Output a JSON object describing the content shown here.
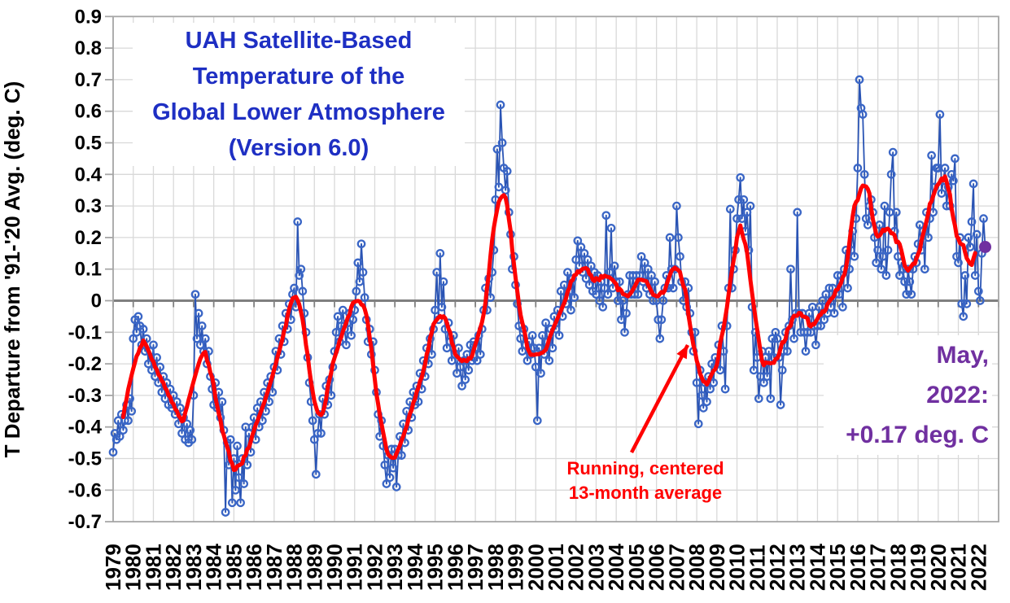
{
  "figure": {
    "title_lines": [
      "UAH Satellite-Based",
      "Temperature of the",
      "Global Lower Atmosphere",
      "(Version 6.0)"
    ],
    "title_color": "#1E2FC3",
    "y_axis_title": "T Departure from '91-'20 Avg. (deg. C)",
    "latest_label_lines": [
      "May,",
      "2022:",
      "+0.17 deg. C"
    ],
    "latest_color": "#7030A0",
    "smoother_label_lines": [
      "Running, centered",
      "13-month average"
    ],
    "smoother_color": "#FF0000",
    "colors": {
      "monthly_line": "#2A54B4",
      "monthly_marker": "#3A66C6",
      "smoother": "#FF0000",
      "latest_point": "#7030A0",
      "grid": "#D9D9D9",
      "zero_line": "#808080",
      "border": "#A6A6A6",
      "tick_label": "#000000"
    }
  },
  "chart_data": {
    "type": "line",
    "title": "UAH Satellite-Based Temperature of the Global Lower Atmosphere (Version 6.0)",
    "ylabel": "T Departure from '91-'20 Avg. (deg. C)",
    "ylim": [
      -0.7,
      0.9
    ],
    "y_ticks": [
      "0.9",
      "0.8",
      "0.7",
      "0.6",
      "0.5",
      "0.4",
      "0.3",
      "0.2",
      "0.1",
      "0",
      "-0.1",
      "-0.2",
      "-0.3",
      "-0.4",
      "-0.5",
      "-0.6",
      "-0.7"
    ],
    "grid": true,
    "x_start": "1979-01",
    "x_end": "2022-05",
    "x_axis_extends_to": "2023-01",
    "x_tick_years": [
      1979,
      1980,
      1981,
      1982,
      1983,
      1984,
      1985,
      1986,
      1987,
      1988,
      1989,
      1990,
      1991,
      1992,
      1993,
      1994,
      1995,
      1996,
      1997,
      1998,
      1999,
      2000,
      2001,
      2002,
      2003,
      2004,
      2005,
      2006,
      2007,
      2008,
      2009,
      2010,
      2011,
      2012,
      2013,
      2014,
      2015,
      2016,
      2017,
      2018,
      2019,
      2020,
      2021,
      2022
    ],
    "series": [
      {
        "name": "Monthly global lower-atmosphere temperature anomaly (deg. C, '91-'20 base)",
        "style": "line+open-circle-markers",
        "values": [
          -0.48,
          -0.42,
          -0.44,
          -0.38,
          -0.43,
          -0.36,
          -0.41,
          -0.38,
          -0.33,
          -0.38,
          -0.31,
          -0.35,
          -0.12,
          -0.06,
          -0.1,
          -0.05,
          -0.08,
          -0.14,
          -0.09,
          -0.16,
          -0.12,
          -0.2,
          -0.16,
          -0.22,
          -0.14,
          -0.24,
          -0.18,
          -0.26,
          -0.21,
          -0.29,
          -0.24,
          -0.31,
          -0.26,
          -0.33,
          -0.28,
          -0.34,
          -0.3,
          -0.36,
          -0.32,
          -0.39,
          -0.34,
          -0.42,
          -0.37,
          -0.44,
          -0.39,
          -0.45,
          -0.41,
          -0.44,
          -0.3,
          0.02,
          -0.12,
          -0.04,
          -0.14,
          -0.08,
          -0.16,
          -0.12,
          -0.2,
          -0.16,
          -0.24,
          -0.28,
          -0.33,
          -0.26,
          -0.34,
          -0.29,
          -0.37,
          -0.32,
          -0.41,
          -0.67,
          -0.45,
          -0.52,
          -0.44,
          -0.64,
          -0.5,
          -0.6,
          -0.46,
          -0.56,
          -0.64,
          -0.5,
          -0.58,
          -0.4,
          -0.52,
          -0.42,
          -0.48,
          -0.4,
          -0.37,
          -0.44,
          -0.34,
          -0.4,
          -0.32,
          -0.38,
          -0.29,
          -0.35,
          -0.26,
          -0.32,
          -0.24,
          -0.29,
          -0.21,
          -0.16,
          -0.22,
          -0.12,
          -0.17,
          -0.08,
          -0.13,
          -0.04,
          -0.09,
          -0.01,
          -0.06,
          0.02,
          0.04,
          -0.02,
          0.25,
          0.08,
          0.1,
          0.03,
          -0.04,
          -0.1,
          -0.18,
          -0.26,
          -0.32,
          -0.38,
          -0.44,
          -0.55,
          -0.42,
          -0.36,
          -0.42,
          -0.31,
          -0.36,
          -0.27,
          -0.33,
          -0.25,
          -0.3,
          -0.21,
          -0.16,
          -0.1,
          -0.05,
          -0.13,
          -0.08,
          -0.03,
          -0.09,
          -0.14,
          -0.07,
          -0.04,
          -0.11,
          -0.06,
          -0.03,
          0.03,
          0.12,
          0.06,
          0.18,
          0.09,
          0.01,
          -0.06,
          -0.13,
          -0.09,
          -0.17,
          -0.13,
          -0.22,
          -0.29,
          -0.36,
          -0.43,
          -0.38,
          -0.46,
          -0.52,
          -0.58,
          -0.49,
          -0.56,
          -0.47,
          -0.53,
          -0.47,
          -0.59,
          -0.49,
          -0.43,
          -0.49,
          -0.39,
          -0.45,
          -0.35,
          -0.41,
          -0.32,
          -0.37,
          -0.29,
          -0.33,
          -0.27,
          -0.32,
          -0.23,
          -0.28,
          -0.19,
          -0.24,
          -0.15,
          -0.2,
          -0.12,
          -0.17,
          -0.09,
          -0.03,
          0.09,
          -0.06,
          0.15,
          -0.02,
          0.06,
          -0.09,
          -0.15,
          -0.07,
          -0.13,
          -0.19,
          -0.11,
          -0.17,
          -0.23,
          -0.15,
          -0.21,
          -0.27,
          -0.19,
          -0.25,
          -0.17,
          -0.22,
          -0.14,
          -0.19,
          -0.13,
          -0.15,
          -0.19,
          -0.11,
          -0.17,
          -0.09,
          -0.03,
          0.04,
          -0.03,
          0.07,
          0.01,
          0.09,
          0.16,
          0.32,
          0.48,
          0.36,
          0.62,
          0.5,
          0.42,
          0.35,
          0.41,
          0.28,
          0.21,
          0.1,
          0.14,
          0.05,
          -0.01,
          -0.08,
          -0.12,
          -0.16,
          -0.09,
          -0.14,
          -0.19,
          -0.13,
          -0.17,
          -0.11,
          -0.15,
          -0.21,
          -0.38,
          -0.15,
          -0.23,
          -0.11,
          -0.17,
          -0.07,
          -0.13,
          -0.19,
          -0.09,
          -0.15,
          -0.05,
          -0.09,
          -0.03,
          -0.11,
          0.03,
          -0.05,
          0.05,
          -0.01,
          0.09,
          0.03,
          -0.03,
          0.07,
          0.01,
          0.13,
          0.19,
          0.11,
          0.17,
          0.09,
          0.15,
          0.07,
          0.13,
          0.05,
          0.11,
          0.03,
          0.09,
          0.02,
          0.08,
          0.0,
          0.06,
          -0.02,
          0.04,
          0.27,
          0.02,
          0.09,
          0.23,
          0.04,
          0.11,
          0.06,
          0.0,
          0.06,
          -0.06,
          0.0,
          -0.1,
          -0.04,
          0.02,
          0.08,
          0.02,
          0.08,
          0.02,
          0.08,
          0.02,
          0.08,
          0.14,
          0.06,
          0.12,
          0.04,
          0.1,
          0.02,
          0.08,
          0.0,
          0.06,
          0.0,
          -0.06,
          -0.12,
          -0.06,
          0.0,
          0.04,
          0.08,
          0.04,
          0.2,
          0.1,
          0.04,
          0.1,
          0.3,
          0.2,
          0.14,
          0.06,
          0.0,
          0.06,
          -0.02,
          0.04,
          -0.04,
          -0.1,
          -0.16,
          -0.1,
          -0.26,
          -0.39,
          -0.22,
          -0.3,
          -0.34,
          -0.26,
          -0.32,
          -0.24,
          -0.28,
          -0.2,
          -0.26,
          -0.18,
          -0.2,
          -0.14,
          -0.22,
          -0.08,
          -0.16,
          -0.28,
          -0.08,
          0.04,
          0.29,
          0.04,
          0.1,
          0.16,
          0.26,
          0.32,
          0.39,
          0.26,
          0.32,
          0.22,
          0.28,
          0.16,
          0.3,
          -0.02,
          -0.22,
          -0.1,
          -0.18,
          -0.31,
          -0.24,
          -0.16,
          -0.26,
          -0.18,
          -0.24,
          -0.16,
          -0.31,
          -0.12,
          -0.18,
          -0.1,
          -0.12,
          -0.18,
          -0.33,
          -0.22,
          -0.16,
          -0.1,
          -0.16,
          -0.08,
          0.1,
          -0.06,
          -0.12,
          -0.04,
          0.28,
          -0.04,
          -0.1,
          -0.04,
          -0.1,
          -0.16,
          -0.1,
          -0.04,
          -0.1,
          -0.02,
          -0.08,
          -0.14,
          -0.08,
          -0.02,
          -0.08,
          0.0,
          -0.06,
          0.02,
          -0.04,
          0.04,
          -0.02,
          0.04,
          -0.04,
          0.02,
          0.08,
          0.02,
          0.08,
          -0.02,
          0.1,
          0.16,
          0.04,
          0.1,
          0.16,
          0.22,
          0.14,
          0.26,
          0.42,
          0.7,
          0.61,
          0.59,
          0.4,
          0.26,
          0.24,
          0.3,
          0.32,
          0.28,
          0.2,
          0.12,
          0.16,
          0.24,
          0.1,
          0.14,
          0.3,
          0.08,
          0.16,
          0.28,
          0.4,
          0.47,
          0.22,
          0.28,
          0.14,
          0.08,
          0.12,
          0.1,
          0.06,
          0.02,
          0.1,
          0.06,
          0.02,
          0.1,
          0.14,
          0.12,
          0.18,
          0.24,
          0.16,
          0.22,
          0.1,
          0.28,
          0.2,
          0.26,
          0.46,
          0.28,
          0.36,
          0.42,
          0.42,
          0.59,
          0.34,
          0.38,
          0.42,
          0.3,
          0.36,
          0.3,
          0.4,
          0.38,
          0.45,
          0.14,
          0.12,
          0.2,
          -0.01,
          -0.05,
          0.08,
          -0.01,
          0.2,
          0.17,
          0.25,
          0.37,
          0.08,
          0.21,
          0.03,
          0.0,
          0.15,
          0.26,
          0.17
        ]
      },
      {
        "name": "Running, centered 13-month average",
        "style": "thick-line",
        "derived": "computed as centered 13-month running mean of monthly series"
      }
    ],
    "latest_point": {
      "label": "May, 2022",
      "value": 0.17
    },
    "legend_position": "none",
    "annotations": [
      {
        "text": "Running, centered 13-month average",
        "target": "smoother line near 2008 downturn"
      },
      {
        "text": "May, 2022: +0.17 deg. C",
        "target": "final data point"
      }
    ]
  }
}
